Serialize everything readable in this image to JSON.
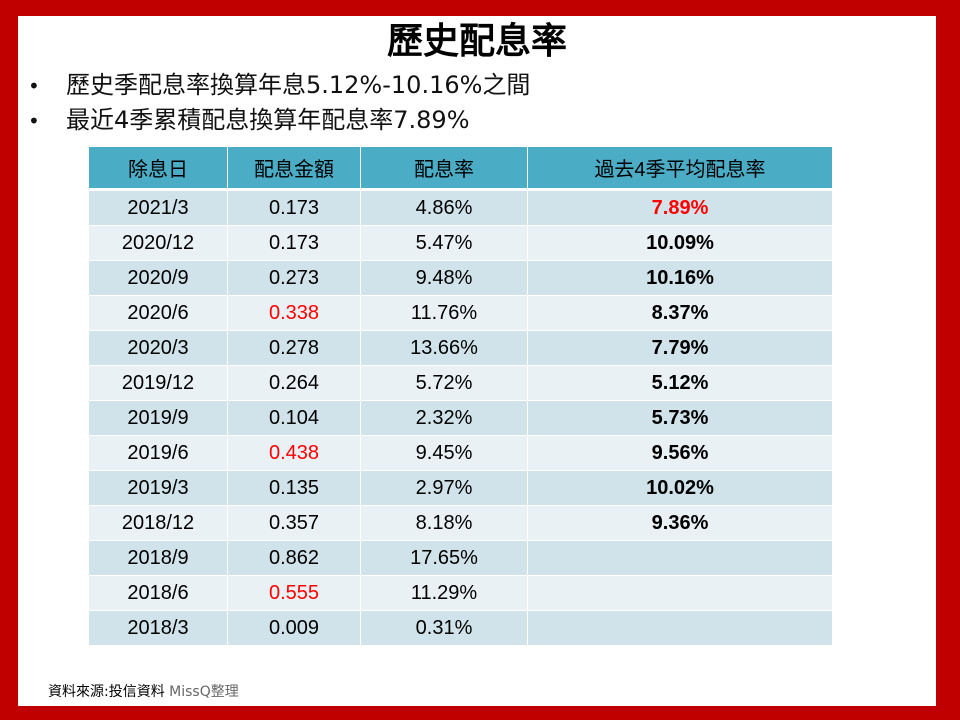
{
  "title": "歷史配息率",
  "bullets": [
    "歷史季配息率換算年息5.12%-10.16%之間",
    "最近4季累積配息換算年配息率7.89%"
  ],
  "table": {
    "headers": [
      "除息日",
      "配息金額",
      "配息率",
      "過去4季平均配息率"
    ],
    "rows": [
      {
        "date": "2021/3",
        "amount": "0.173",
        "yield": "4.86%",
        "avg": "7.89%"
      },
      {
        "date": "2020/12",
        "amount": "0.173",
        "yield": "5.47%",
        "avg": "10.09%"
      },
      {
        "date": "2020/9",
        "amount": "0.273",
        "yield": "9.48%",
        "avg": "10.16%"
      },
      {
        "date": "2020/6",
        "amount": "0.338",
        "yield": "11.76%",
        "avg": "8.37%"
      },
      {
        "date": "2020/3",
        "amount": "0.278",
        "yield": "13.66%",
        "avg": "7.79%"
      },
      {
        "date": "2019/12",
        "amount": "0.264",
        "yield": "5.72%",
        "avg": "5.12%"
      },
      {
        "date": "2019/9",
        "amount": "0.104",
        "yield": "2.32%",
        "avg": "5.73%"
      },
      {
        "date": "2019/6",
        "amount": "0.438",
        "yield": "9.45%",
        "avg": "9.56%"
      },
      {
        "date": "2019/3",
        "amount": "0.135",
        "yield": "2.97%",
        "avg": "10.02%"
      },
      {
        "date": "2018/12",
        "amount": "0.357",
        "yield": "8.18%",
        "avg": "9.36%"
      },
      {
        "date": "2018/9",
        "amount": "0.862",
        "yield": "17.65%",
        "avg": ""
      },
      {
        "date": "2018/6",
        "amount": "0.555",
        "yield": "11.29%",
        "avg": ""
      },
      {
        "date": "2018/3",
        "amount": "0.009",
        "yield": "0.31%",
        "avg": ""
      }
    ]
  },
  "source": {
    "label": "資料來源:投信資料",
    "author": "MissQ整理"
  },
  "colors": {
    "frame": "#c00000",
    "header": "#4bacc6",
    "row_odd": "#d0e3ea",
    "row_even": "#e9f1f5",
    "highlight": "#ff0000"
  }
}
